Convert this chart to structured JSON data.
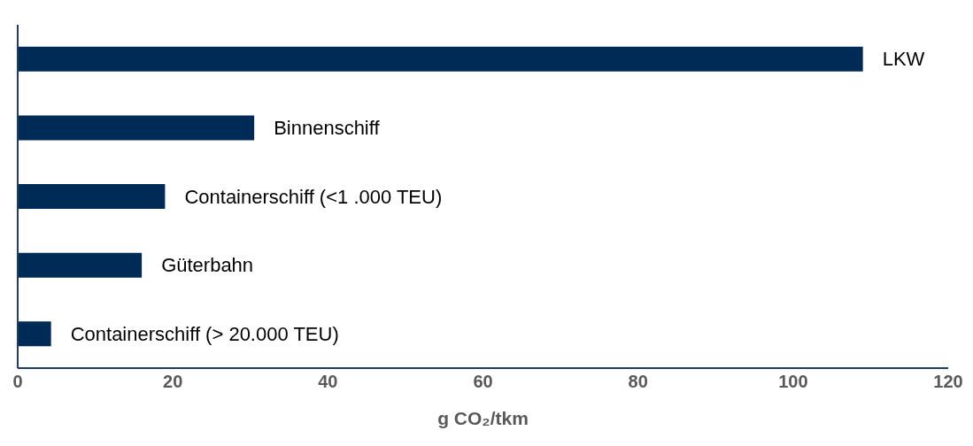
{
  "chart_data": {
    "type": "bar",
    "orientation": "horizontal",
    "xlabel": "g CO₂/tkm",
    "categories": [
      "LKW",
      "Binnenschiff",
      "Containerschiff (<1 .000 TEU)",
      "Güterbahn",
      "Containerschiff (> 20.000 TEU)"
    ],
    "values": [
      109,
      30.5,
      19,
      16,
      4.3
    ],
    "color": "#002b56",
    "xlim": [
      0,
      120
    ],
    "xticks": [
      0,
      20,
      40,
      60,
      80,
      100,
      120
    ],
    "tick_labels": "x"
  }
}
